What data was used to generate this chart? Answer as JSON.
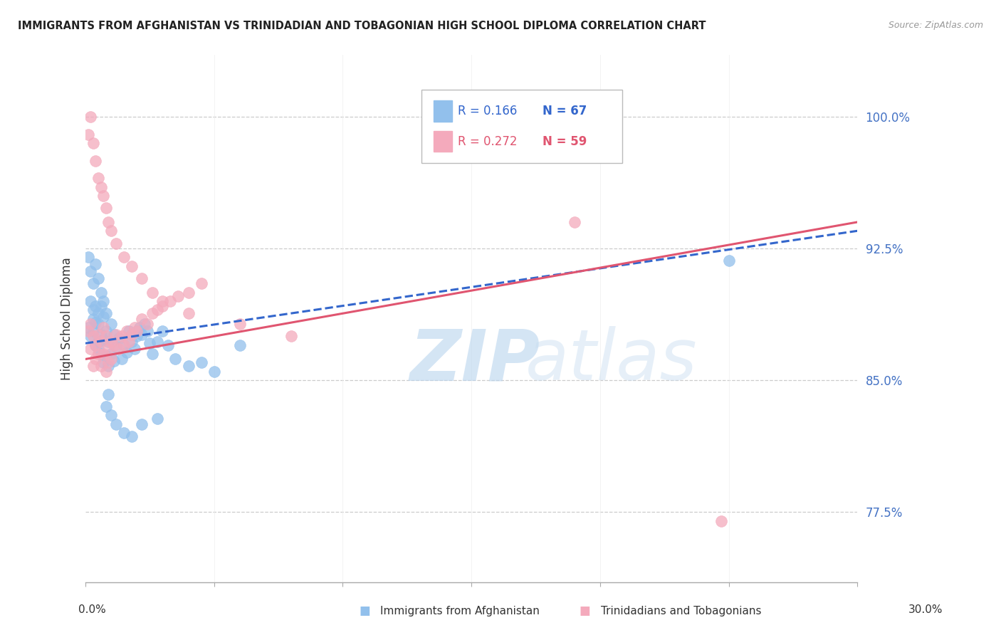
{
  "title": "IMMIGRANTS FROM AFGHANISTAN VS TRINIDADIAN AND TOBAGONIAN HIGH SCHOOL DIPLOMA CORRELATION CHART",
  "source": "Source: ZipAtlas.com",
  "ylabel": "High School Diploma",
  "yticks": [
    0.775,
    0.85,
    0.925,
    1.0
  ],
  "ytick_labels": [
    "77.5%",
    "85.0%",
    "92.5%",
    "100.0%"
  ],
  "xlim": [
    0.0,
    0.3
  ],
  "ylim": [
    0.735,
    1.035
  ],
  "legend_r1": "R = 0.166",
  "legend_n1": "N = 67",
  "legend_r2": "R = 0.272",
  "legend_n2": "N = 59",
  "blue_color": "#92C0EC",
  "pink_color": "#F4AABC",
  "blue_line_color": "#3366CC",
  "pink_line_color": "#E05570",
  "watermark_zip": "ZIP",
  "watermark_atlas": "atlas",
  "legend_label1": "Immigrants from Afghanistan",
  "legend_label2": "Trinidadians and Tobagonians",
  "blue_x": [
    0.001,
    0.002,
    0.002,
    0.003,
    0.003,
    0.003,
    0.004,
    0.004,
    0.004,
    0.005,
    0.005,
    0.005,
    0.005,
    0.006,
    0.006,
    0.006,
    0.007,
    0.007,
    0.007,
    0.008,
    0.008,
    0.008,
    0.009,
    0.009,
    0.01,
    0.01,
    0.011,
    0.011,
    0.012,
    0.013,
    0.014,
    0.015,
    0.016,
    0.017,
    0.018,
    0.019,
    0.02,
    0.021,
    0.022,
    0.023,
    0.024,
    0.025,
    0.026,
    0.028,
    0.03,
    0.032,
    0.035,
    0.04,
    0.045,
    0.05,
    0.001,
    0.002,
    0.003,
    0.004,
    0.005,
    0.006,
    0.007,
    0.008,
    0.009,
    0.01,
    0.012,
    0.015,
    0.018,
    0.022,
    0.028,
    0.06,
    0.25
  ],
  "blue_y": [
    0.88,
    0.895,
    0.875,
    0.885,
    0.878,
    0.89,
    0.883,
    0.87,
    0.892,
    0.888,
    0.872,
    0.882,
    0.868,
    0.876,
    0.865,
    0.892,
    0.886,
    0.873,
    0.86,
    0.878,
    0.864,
    0.888,
    0.872,
    0.858,
    0.882,
    0.865,
    0.876,
    0.861,
    0.869,
    0.874,
    0.862,
    0.87,
    0.866,
    0.878,
    0.872,
    0.868,
    0.875,
    0.88,
    0.876,
    0.882,
    0.878,
    0.871,
    0.865,
    0.872,
    0.878,
    0.87,
    0.862,
    0.858,
    0.86,
    0.855,
    0.92,
    0.912,
    0.905,
    0.916,
    0.908,
    0.9,
    0.895,
    0.835,
    0.842,
    0.83,
    0.825,
    0.82,
    0.818,
    0.825,
    0.828,
    0.87,
    0.918
  ],
  "pink_x": [
    0.001,
    0.002,
    0.002,
    0.003,
    0.003,
    0.004,
    0.004,
    0.005,
    0.005,
    0.006,
    0.006,
    0.007,
    0.007,
    0.008,
    0.008,
    0.009,
    0.009,
    0.01,
    0.01,
    0.011,
    0.012,
    0.013,
    0.014,
    0.015,
    0.016,
    0.017,
    0.018,
    0.019,
    0.02,
    0.022,
    0.024,
    0.026,
    0.028,
    0.03,
    0.033,
    0.036,
    0.04,
    0.045,
    0.001,
    0.002,
    0.003,
    0.004,
    0.005,
    0.006,
    0.007,
    0.008,
    0.009,
    0.01,
    0.012,
    0.015,
    0.018,
    0.022,
    0.026,
    0.03,
    0.04,
    0.06,
    0.08,
    0.19,
    0.247
  ],
  "pink_y": [
    0.878,
    0.882,
    0.868,
    0.875,
    0.858,
    0.87,
    0.862,
    0.876,
    0.865,
    0.872,
    0.858,
    0.865,
    0.88,
    0.875,
    0.855,
    0.868,
    0.86,
    0.872,
    0.862,
    0.87,
    0.876,
    0.868,
    0.875,
    0.87,
    0.878,
    0.872,
    0.876,
    0.88,
    0.878,
    0.885,
    0.882,
    0.888,
    0.89,
    0.892,
    0.895,
    0.898,
    0.9,
    0.905,
    0.99,
    1.0,
    0.985,
    0.975,
    0.965,
    0.96,
    0.955,
    0.948,
    0.94,
    0.935,
    0.928,
    0.92,
    0.915,
    0.908,
    0.9,
    0.895,
    0.888,
    0.882,
    0.875,
    0.94,
    0.77
  ],
  "blue_trend_x": [
    0.0,
    0.3
  ],
  "blue_trend_y": [
    0.871,
    0.935
  ],
  "pink_trend_x": [
    0.0,
    0.3
  ],
  "pink_trend_y": [
    0.862,
    0.94
  ]
}
